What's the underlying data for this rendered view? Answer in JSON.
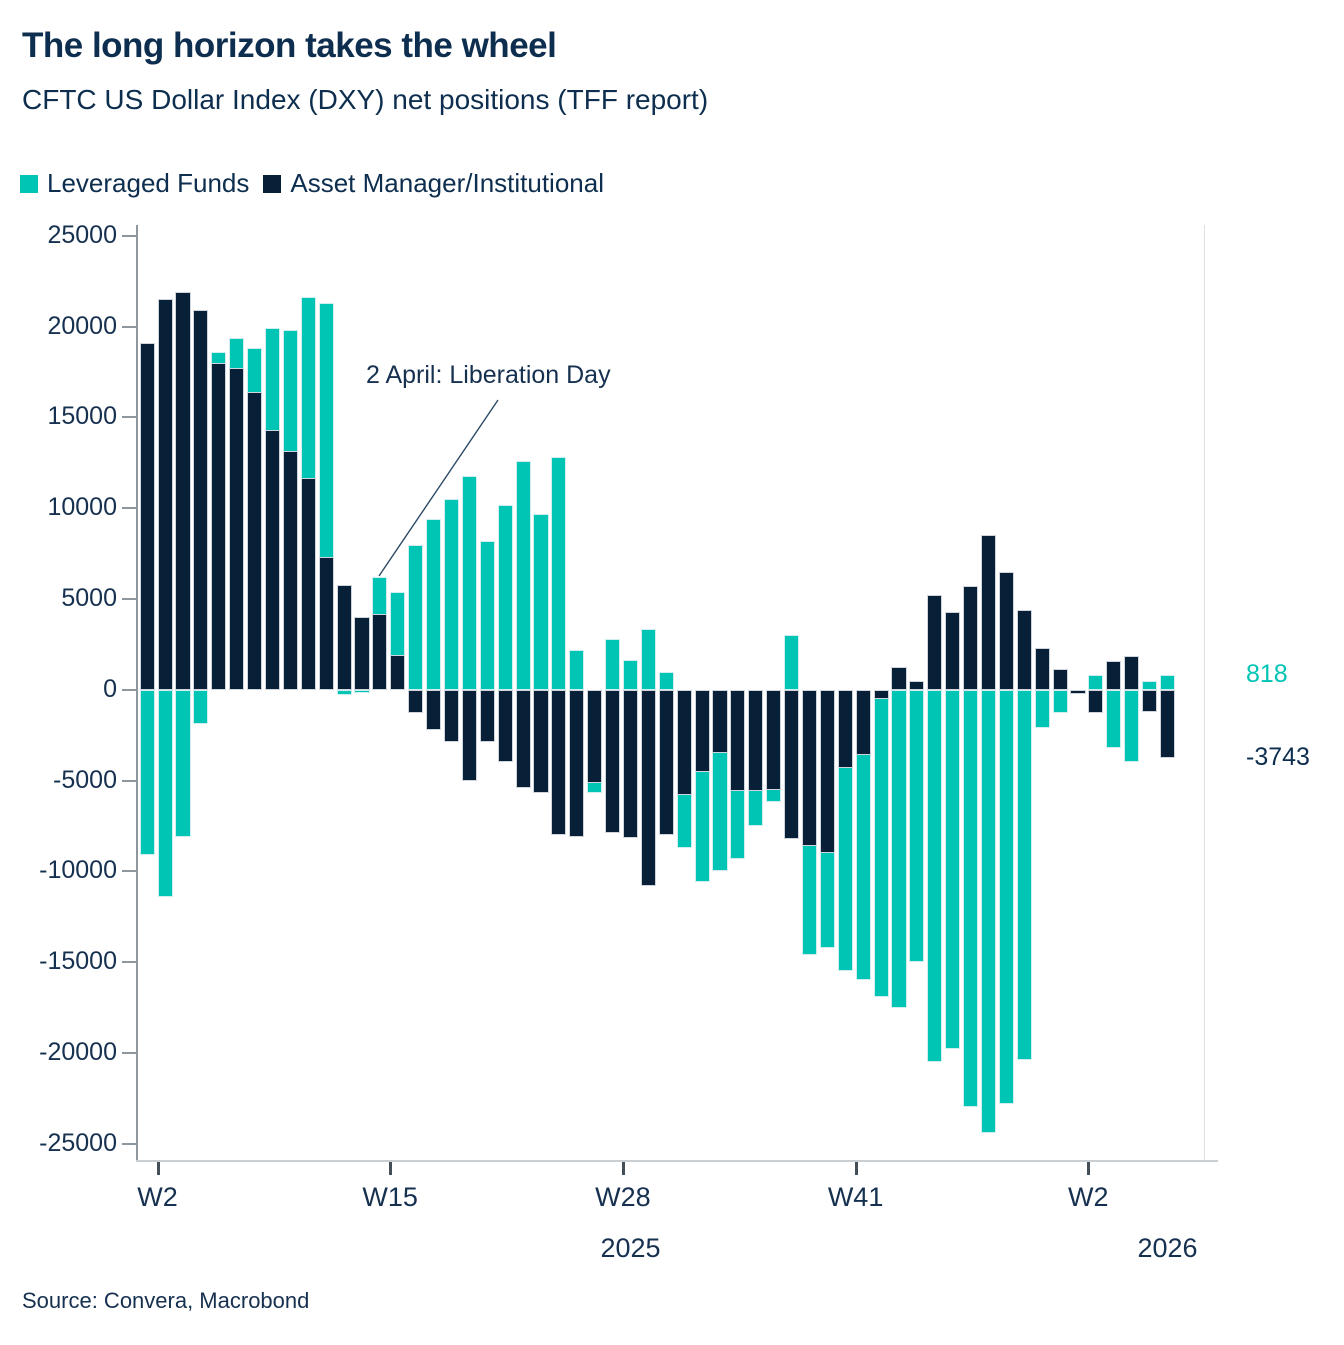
{
  "title": "The long horizon takes the wheel",
  "subtitle": "CFTC US Dollar Index (DXY) net positions (TFF report)",
  "legend": [
    {
      "label": "Leveraged Funds",
      "color": "#00C4B4"
    },
    {
      "label": "Asset Manager/Institutional",
      "color": "#081F38"
    }
  ],
  "annotation": {
    "text": "2 April: Liberation Day"
  },
  "end_labels": [
    {
      "text": "818",
      "value": 818,
      "color": "#00C4B4"
    },
    {
      "text": "-3743",
      "value": -3743,
      "color": "#0d2e4e"
    }
  ],
  "source": "Source: Convera, Macrobond",
  "chart_data": {
    "type": "bar",
    "mode": "overlay-from-zero",
    "title": "CFTC US Dollar Index (DXY) net positions (TFF report)",
    "categories": [
      "W1",
      "W2",
      "W3",
      "W4",
      "W5",
      "W6",
      "W7",
      "W8",
      "W9",
      "W10",
      "W11",
      "W12",
      "W13",
      "W14",
      "W15",
      "W16",
      "W17",
      "W18",
      "W19",
      "W20",
      "W21",
      "W22",
      "W23",
      "W24",
      "W25",
      "W26",
      "W27",
      "W28",
      "W29",
      "W30",
      "W31",
      "W32",
      "W33",
      "W34",
      "W35",
      "W36",
      "W37",
      "W38",
      "W39",
      "W40",
      "W41",
      "W42",
      "W43",
      "W44",
      "W45",
      "W46",
      "W47",
      "W48",
      "W49",
      "W50",
      "W51",
      "W52",
      "W1",
      "W2",
      "W3",
      "W4",
      "W5",
      "W6"
    ],
    "series": [
      {
        "name": "Leveraged Funds",
        "color": "#00C4B4",
        "values": [
          -9100,
          -11400,
          -8100,
          -1900,
          18600,
          19400,
          18800,
          19900,
          19800,
          21650,
          21300,
          -300,
          -200,
          6200,
          5400,
          8000,
          9400,
          10500,
          11800,
          8200,
          10200,
          12600,
          9700,
          12800,
          2200,
          -5700,
          2800,
          1650,
          3350,
          1000,
          -8700,
          -10600,
          -10000,
          -9300,
          -7500,
          -6200,
          3000,
          -14600,
          -14200,
          -15500,
          -16000,
          -16900,
          -17500,
          -15000,
          -20500,
          -19800,
          -23000,
          -24400,
          -22800,
          -20400,
          -2100,
          -1300,
          -100,
          830,
          -3200,
          -4000,
          490,
          818
        ]
      },
      {
        "name": "Asset Manager/Institutional",
        "color": "#081F38",
        "values": [
          19100,
          21500,
          21900,
          20900,
          18000,
          17700,
          16400,
          14300,
          13150,
          11650,
          7300,
          5800,
          4000,
          4200,
          1900,
          -1300,
          -2200,
          -2900,
          -5000,
          -2900,
          -4000,
          -5400,
          -5700,
          -8000,
          -8100,
          -5150,
          -7900,
          -8150,
          -10800,
          -8000,
          -5800,
          -4500,
          -3500,
          -5600,
          -5600,
          -5500,
          -8200,
          -8600,
          -9000,
          -4300,
          -3600,
          -500,
          1250,
          465,
          5200,
          4300,
          5700,
          8500,
          6500,
          4400,
          2300,
          1160,
          -250,
          -1300,
          1580,
          1890,
          -1200,
          -3743
        ]
      }
    ],
    "ylim": [
      -25950,
      25600
    ],
    "ytick_step": 5000,
    "ytick_max": 25000,
    "ytick_min": -25000,
    "grid": false,
    "legend_position": "top-left",
    "x_ticks": [
      {
        "index": 1,
        "label": "W2"
      },
      {
        "index": 14,
        "label": "W15"
      },
      {
        "index": 27,
        "label": "W28"
      },
      {
        "index": 40,
        "label": "W41"
      },
      {
        "index": 53,
        "label": "W2"
      }
    ],
    "year_labels": [
      {
        "index": 27,
        "label": "2025"
      },
      {
        "index": 57,
        "label": "2026"
      }
    ]
  }
}
